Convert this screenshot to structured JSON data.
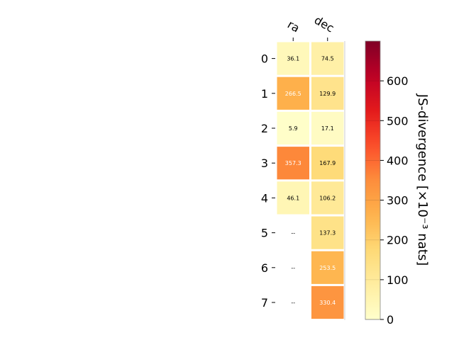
{
  "chart_data": {
    "type": "heatmap",
    "columns": [
      "ra",
      "dec"
    ],
    "rows": [
      "0",
      "1",
      "2",
      "3",
      "4",
      "5",
      "6",
      "7"
    ],
    "values": [
      [
        36.1,
        74.5
      ],
      [
        266.5,
        129.9
      ],
      [
        5.9,
        17.1
      ],
      [
        357.3,
        167.9
      ],
      [
        46.1,
        106.2
      ],
      [
        null,
        137.3
      ],
      [
        null,
        253.5
      ],
      [
        null,
        330.4
      ]
    ],
    "cell_labels": [
      [
        "36.1",
        "74.5"
      ],
      [
        "266.5",
        "129.9"
      ],
      [
        "5.9",
        "17.1"
      ],
      [
        "357.3",
        "167.9"
      ],
      [
        "46.1",
        "106.2"
      ],
      [
        "--",
        "137.3"
      ],
      [
        "--",
        "253.5"
      ],
      [
        "--",
        "330.4"
      ]
    ],
    "missing_label": "--",
    "colorbar": {
      "label": "JS-divergence [×10⁻³ nats]",
      "min": 0,
      "max": 700,
      "ticks": [
        0,
        100,
        200,
        300,
        400,
        500,
        600
      ],
      "colormap": "YlOrRd"
    }
  }
}
